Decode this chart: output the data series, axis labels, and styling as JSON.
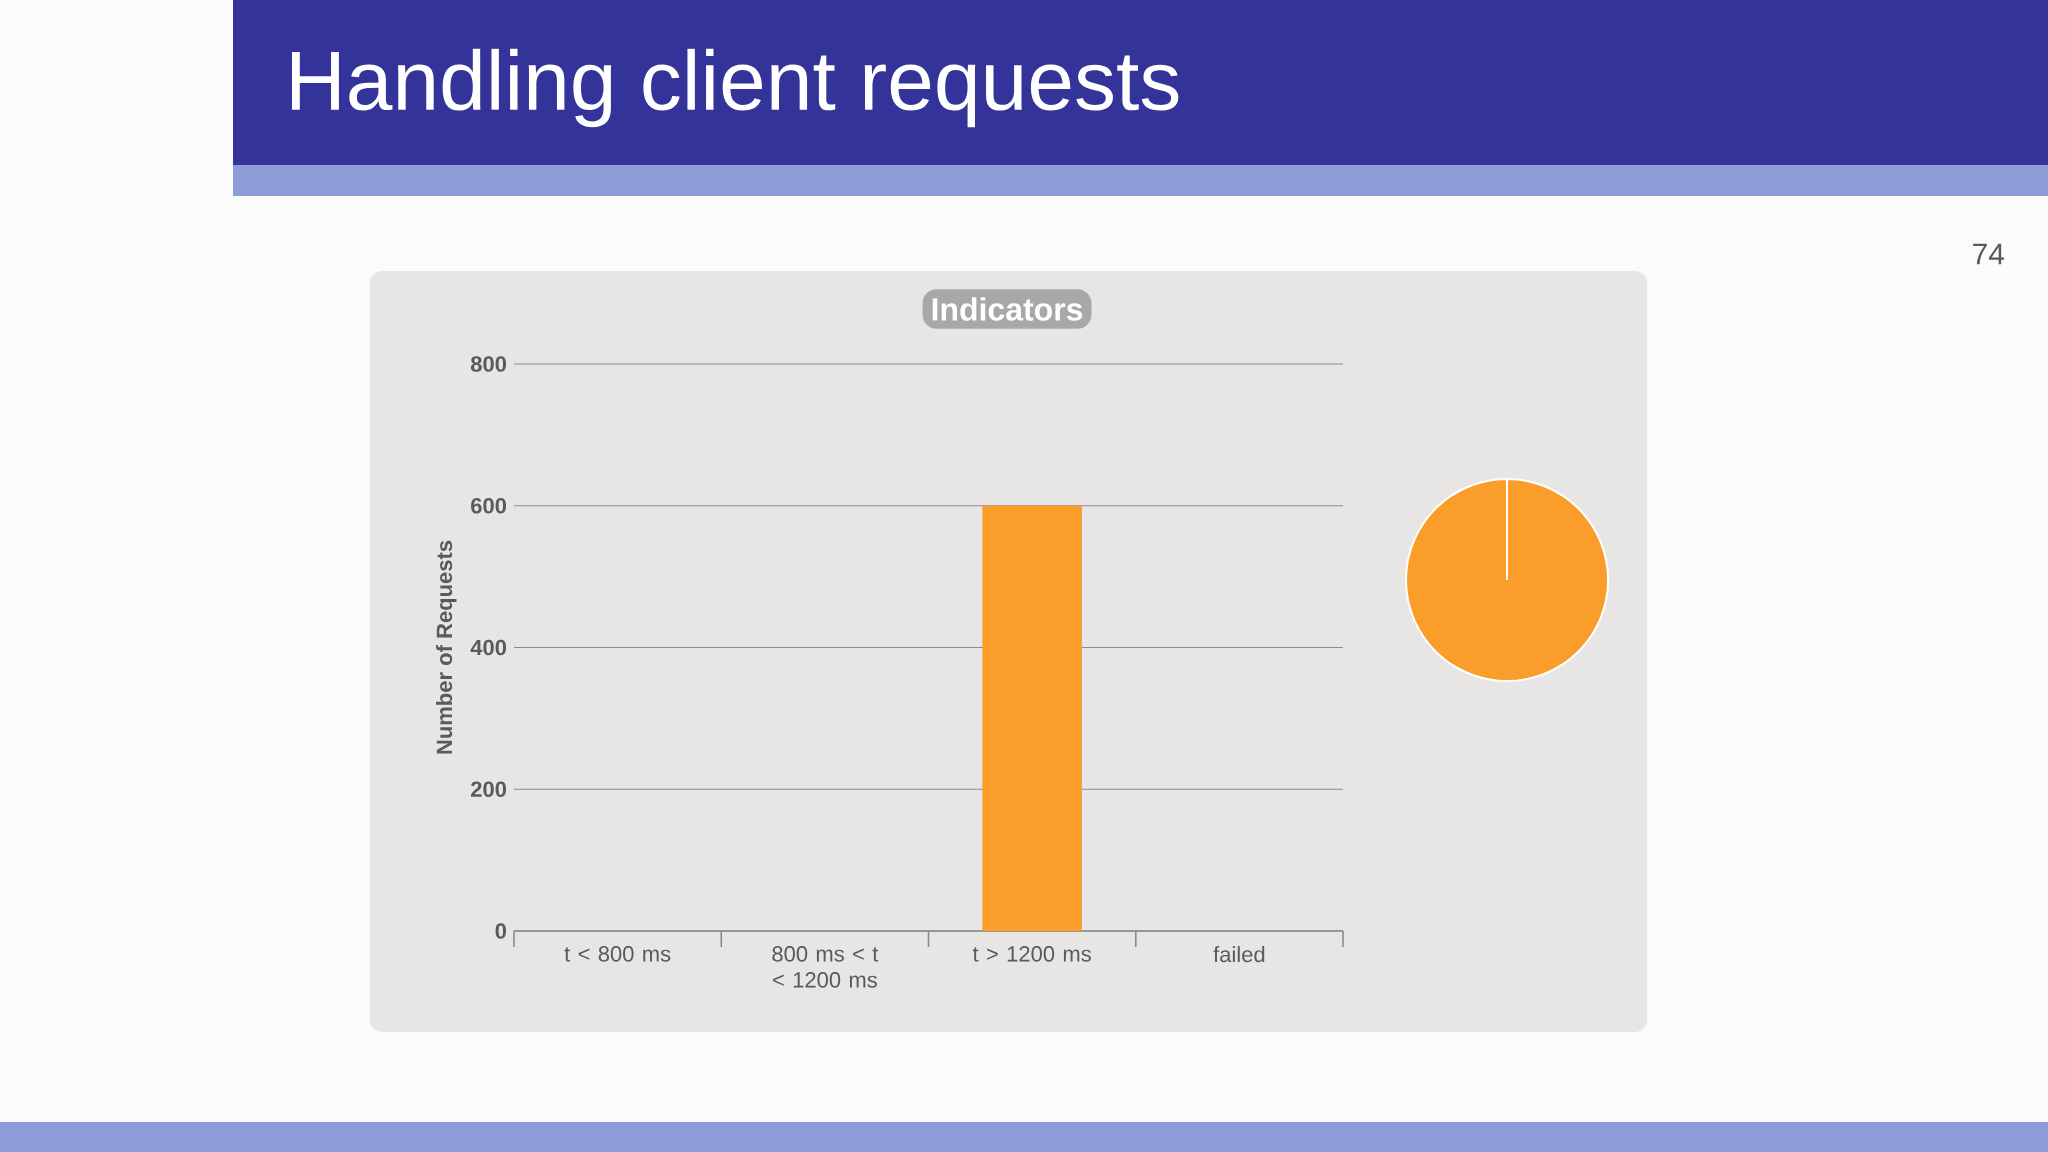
{
  "chart_data": [
    {
      "type": "bar",
      "title": "Handling client requests",
      "subtitle": "Indicators",
      "annotations": [
        "74"
      ],
      "categories": [
        "t < 800 ms",
        "800 ms < t < 1200 ms",
        "t > 1200 ms",
        "failed"
      ],
      "values": [
        0,
        0,
        600,
        0
      ],
      "color": "#fa9d2a",
      "ylabel": "Number of Requests",
      "ylim": [
        0,
        800
      ],
      "yticks": [
        0,
        200,
        400,
        600,
        800
      ],
      "grid": "y"
    },
    {
      "type": "pie",
      "categories": [
        null
      ],
      "values": [
        100
      ],
      "colors": [
        "#fa9d2a"
      ]
    }
  ]
}
